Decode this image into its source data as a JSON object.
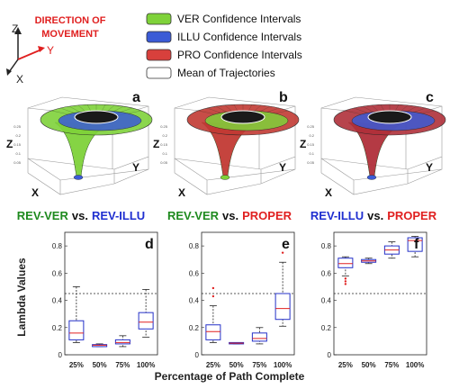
{
  "axes_key": {
    "z": "Z",
    "y": "Y",
    "x": "X"
  },
  "direction_label": [
    "DIRECTION OF",
    "MOVEMENT"
  ],
  "legend": [
    {
      "label": "VER Confidence Intervals",
      "color": "#7fd23a"
    },
    {
      "label": "ILLU Confidence Intervals",
      "color": "#3b5bd6"
    },
    {
      "label": "PRO Confidence Intervals",
      "color": "#d8403c"
    },
    {
      "label": "Mean of Trajectories",
      "color": "#ffffff"
    }
  ],
  "panels_3d": [
    {
      "letter": "a",
      "axis_z": "Z",
      "axis_y": "Y",
      "axis_x": "X",
      "outer_color": "#7fd23a",
      "inner_color": "#3b5bd6"
    },
    {
      "letter": "b",
      "axis_z": "Z",
      "axis_y": "Y",
      "axis_x": "X",
      "outer_color": "#c23a34",
      "inner_color": "#7fd23a"
    },
    {
      "letter": "c",
      "axis_z": "Z",
      "axis_y": "Y",
      "axis_x": "X",
      "outer_color": "#b0303a",
      "inner_color": "#3b5bd6"
    }
  ],
  "comparisons": [
    {
      "left": "REV-VER",
      "vs": "vs.",
      "right": "REV-ILLU",
      "left_color": "#1e8a1e",
      "right_color": "#1f2fd0"
    },
    {
      "left": "REV-VER",
      "vs": "vs.",
      "right": "PROPER",
      "left_color": "#1e8a1e",
      "right_color": "#e02020"
    },
    {
      "left": "REV-ILLU",
      "vs": "vs.",
      "right": "PROPER",
      "left_color": "#1f2fd0",
      "right_color": "#e02020"
    }
  ],
  "chart_data": [
    {
      "type": "box",
      "letter": "d",
      "categories": [
        "25%",
        "50%",
        "75%",
        "100%"
      ],
      "ylim": [
        0,
        0.9
      ],
      "yticks": [
        "0",
        "0.2",
        "0.4",
        "0.6",
        "0.8"
      ],
      "reference_line": 0.45,
      "boxes": [
        {
          "min": 0.09,
          "q1": 0.11,
          "median": 0.16,
          "q3": 0.25,
          "max": 0.5,
          "outliers": []
        },
        {
          "min": 0.06,
          "q1": 0.06,
          "median": 0.07,
          "q3": 0.075,
          "max": 0.08,
          "outliers": []
        },
        {
          "min": 0.06,
          "q1": 0.08,
          "median": 0.09,
          "q3": 0.11,
          "max": 0.14,
          "outliers": []
        },
        {
          "min": 0.13,
          "q1": 0.19,
          "median": 0.24,
          "q3": 0.31,
          "max": 0.48,
          "outliers": []
        }
      ]
    },
    {
      "type": "box",
      "letter": "e",
      "categories": [
        "25%",
        "50%",
        "75%",
        "100%"
      ],
      "ylim": [
        0,
        0.9
      ],
      "yticks": [
        "0",
        "0.2",
        "0.4",
        "0.6",
        "0.8"
      ],
      "reference_line": 0.45,
      "boxes": [
        {
          "min": 0.09,
          "q1": 0.11,
          "median": 0.17,
          "q3": 0.22,
          "max": 0.36,
          "outliers": [
            0.49,
            0.43
          ]
        },
        {
          "min": 0.08,
          "q1": 0.08,
          "median": 0.085,
          "q3": 0.09,
          "max": 0.09,
          "outliers": []
        },
        {
          "min": 0.08,
          "q1": 0.1,
          "median": 0.12,
          "q3": 0.16,
          "max": 0.2,
          "outliers": []
        },
        {
          "min": 0.21,
          "q1": 0.26,
          "median": 0.34,
          "q3": 0.45,
          "max": 0.68,
          "outliers": [
            0.75
          ]
        }
      ]
    },
    {
      "type": "box",
      "letter": "f",
      "categories": [
        "25%",
        "50%",
        "75%",
        "100%"
      ],
      "ylim": [
        0,
        0.9
      ],
      "yticks": [
        "0",
        "0.2",
        "0.4",
        "0.6",
        "0.8"
      ],
      "reference_line": 0.45,
      "boxes": [
        {
          "min": 0.58,
          "q1": 0.64,
          "median": 0.67,
          "q3": 0.71,
          "max": 0.72,
          "outliers": [
            0.56,
            0.54,
            0.52
          ]
        },
        {
          "min": 0.67,
          "q1": 0.68,
          "median": 0.69,
          "q3": 0.7,
          "max": 0.71,
          "outliers": []
        },
        {
          "min": 0.71,
          "q1": 0.74,
          "median": 0.77,
          "q3": 0.8,
          "max": 0.83,
          "outliers": []
        },
        {
          "min": 0.72,
          "q1": 0.76,
          "median": 0.84,
          "q3": 0.86,
          "max": 0.87,
          "outliers": []
        }
      ]
    }
  ],
  "ylabel": "Lambda Values",
  "xlabel": "Percentage of Path Complete"
}
